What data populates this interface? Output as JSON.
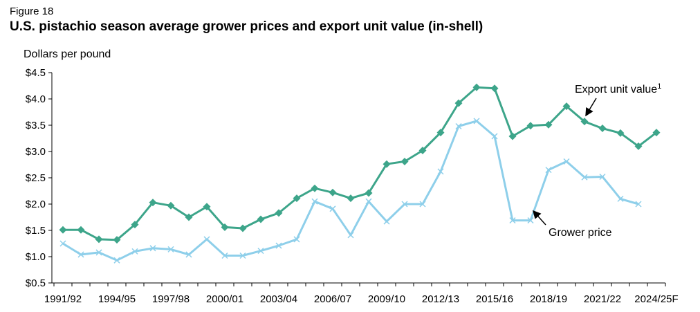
{
  "figure": {
    "label": "Figure 18",
    "title": "U.S. pistachio season average grower prices and export unit value (in-shell)"
  },
  "chart_data": {
    "type": "line",
    "title": "U.S. pistachio season average grower prices and export unit value (in-shell)",
    "ylabel": "Dollars per pound",
    "xlabel": "",
    "ylim": [
      0.5,
      4.5
    ],
    "y_ticks": [
      0.5,
      1.0,
      1.5,
      2.0,
      2.5,
      3.0,
      3.5,
      4.0,
      4.5
    ],
    "y_tick_labels": [
      "$0.5",
      "$1.0",
      "$1.5",
      "$2.0",
      "$2.5",
      "$3.0",
      "$3.5",
      "$4.0",
      "$4.5"
    ],
    "x": [
      "1991/92",
      "1992/93",
      "1993/94",
      "1994/95",
      "1995/96",
      "1996/97",
      "1997/98",
      "1998/99",
      "1999/00",
      "2000/01",
      "2001/02",
      "2002/03",
      "2003/04",
      "2004/05",
      "2005/06",
      "2006/07",
      "2007/08",
      "2008/09",
      "2009/10",
      "2010/11",
      "2011/12",
      "2012/13",
      "2013/14",
      "2014/15",
      "2015/16",
      "2016/17",
      "2017/18",
      "2018/19",
      "2019/20",
      "2020/21",
      "2021/22",
      "2022/23",
      "2023/24",
      "2024/25F"
    ],
    "x_tick_labels": [
      "1991/92",
      "1994/95",
      "1997/98",
      "2000/01",
      "2003/04",
      "2006/07",
      "2009/10",
      "2012/13",
      "2015/16",
      "2018/19",
      "2021/22",
      "2024/25F"
    ],
    "x_tick_label_index": [
      0,
      3,
      6,
      9,
      12,
      15,
      18,
      21,
      24,
      27,
      30,
      33
    ],
    "series": [
      {
        "name": "Export unit value",
        "superscript": "1",
        "color": "#3da58a",
        "marker": "diamond",
        "values": [
          1.51,
          1.51,
          1.33,
          1.32,
          1.61,
          2.03,
          1.97,
          1.75,
          1.95,
          1.56,
          1.54,
          1.71,
          1.83,
          2.11,
          2.3,
          2.22,
          2.11,
          2.21,
          2.76,
          2.81,
          3.02,
          3.36,
          3.92,
          4.22,
          4.2,
          3.29,
          3.49,
          3.51,
          3.86,
          3.57,
          3.44,
          3.35,
          3.1,
          3.36
        ]
      },
      {
        "name": "Grower price",
        "color": "#8ecfea",
        "marker": "x",
        "values": [
          1.25,
          1.04,
          1.08,
          0.93,
          1.1,
          1.16,
          1.14,
          1.04,
          1.33,
          1.02,
          1.02,
          1.11,
          1.21,
          1.33,
          2.05,
          1.91,
          1.41,
          2.05,
          1.67,
          2.0,
          2.0,
          2.62,
          3.48,
          3.58,
          3.29,
          1.69,
          1.69,
          2.65,
          2.81,
          2.51,
          2.52,
          2.1,
          2.0,
          null
        ]
      }
    ],
    "grid": false,
    "legend": "direct labels with arrows"
  }
}
